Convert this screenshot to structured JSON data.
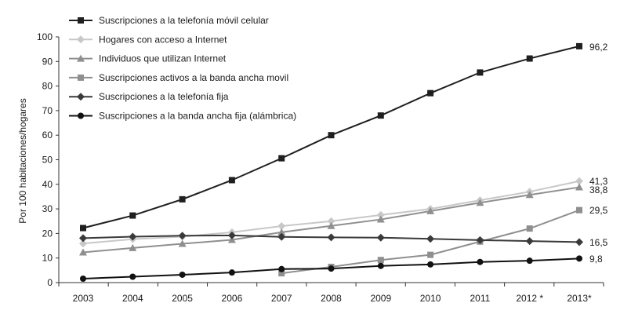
{
  "chart_data": {
    "type": "line",
    "title": "",
    "xlabel": "",
    "ylabel": "Por 100 habitaciones/hogares",
    "ylim": [
      0,
      100
    ],
    "yticks": [
      0,
      10,
      20,
      30,
      40,
      50,
      60,
      70,
      80,
      90,
      100
    ],
    "grid": false,
    "legend_position": "top-left",
    "categories": [
      "2003",
      "2004",
      "2005",
      "2006",
      "2007",
      "2008",
      "2009",
      "2010",
      "2011",
      "2012 *",
      "2013*"
    ],
    "series": [
      {
        "name": "Suscripciones a la telefonía móvil celular",
        "marker": "square",
        "color": "#1f1f1f",
        "values": [
          22.2,
          27.3,
          33.9,
          41.7,
          50.6,
          60.0,
          68.0,
          77.1,
          85.5,
          91.2,
          96.2
        ],
        "end_label": "96,2"
      },
      {
        "name": "Hogares con acceso a Internet",
        "marker": "diamond",
        "color": "#c8c8c8",
        "values": [
          15.9,
          17.7,
          18.7,
          20.5,
          23.0,
          25.0,
          27.5,
          30.0,
          33.5,
          37.0,
          41.3
        ],
        "end_label": "41,3"
      },
      {
        "name": "Individuos que utilizan Internet",
        "marker": "triangle",
        "color": "#8f8f8f",
        "values": [
          12.3,
          14.1,
          15.8,
          17.4,
          20.5,
          23.1,
          25.7,
          29.1,
          32.5,
          35.7,
          38.8
        ],
        "end_label": "38,8"
      },
      {
        "name": "Suscripciones activos a la banda ancha movil",
        "marker": "square",
        "color": "#8f8f8f",
        "values": [
          null,
          null,
          null,
          null,
          3.8,
          6.4,
          9.2,
          11.3,
          16.7,
          22.0,
          29.5
        ],
        "end_label": "29,5"
      },
      {
        "name": "Suscripciones a la telefonía fija",
        "marker": "diamond",
        "color": "#3a3a3a",
        "values": [
          18.1,
          18.7,
          19.1,
          19.2,
          18.6,
          18.4,
          18.3,
          17.8,
          17.3,
          16.9,
          16.5
        ],
        "end_label": "16,5"
      },
      {
        "name": "Suscripciones a la banda ancha fija (alámbrica)",
        "marker": "circle",
        "color": "#111111",
        "values": [
          1.6,
          2.4,
          3.2,
          4.1,
          5.5,
          5.7,
          6.8,
          7.4,
          8.4,
          8.9,
          9.8
        ],
        "end_label": "9,8"
      }
    ]
  }
}
